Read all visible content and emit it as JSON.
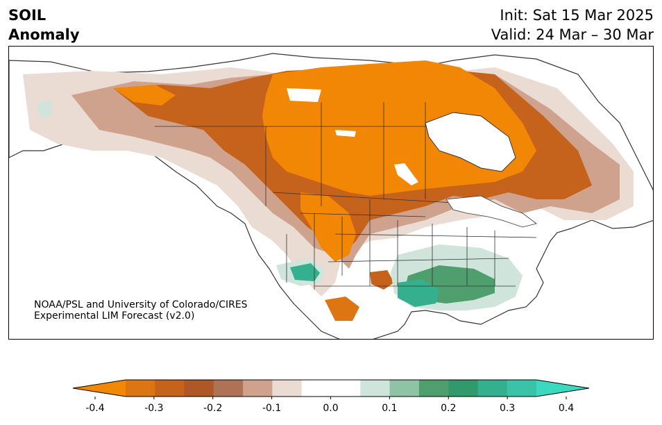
{
  "title": {
    "line1": "SOIL",
    "line2": "Anomaly"
  },
  "header_right": {
    "init": "Init: Sat 15 Mar 2025",
    "valid": "Valid: 24 Mar – 30 Mar"
  },
  "credit": {
    "line1": "NOAA/PSL and University of Colorado/CIRES",
    "line2": "Experimental LIM Forecast (v2.0)"
  },
  "colorbar": {
    "colors": [
      "#f28705",
      "#dd7512",
      "#c5621c",
      "#ad5826",
      "#b07256",
      "#cea28c",
      "#eadbd3",
      "#ffffff",
      "#ffffff",
      "#cfe4da",
      "#8fc3a6",
      "#4e9e6e",
      "#31996c",
      "#35b08e",
      "#3bc3a7",
      "#3cd9c1"
    ],
    "ticks": [
      "-0.4",
      "-0.3",
      "-0.2",
      "-0.1",
      "0.0",
      "0.1",
      "0.2",
      "0.3",
      "0.4"
    ]
  },
  "palette": {
    "dry_strong": "#f28705",
    "dry_mid": "#c5621c",
    "dry_light": "#cea28c",
    "dry_faint": "#eadbd3",
    "wet_faint": "#cfe4da",
    "wet_mid": "#4e9e6e",
    "wet_strong": "#35b08e"
  }
}
